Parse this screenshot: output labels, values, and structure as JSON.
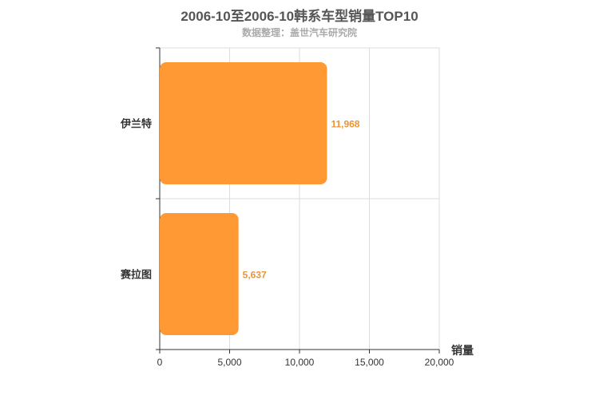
{
  "chart_data": {
    "type": "bar",
    "orientation": "horizontal",
    "title": "2006-10至2006-10韩系车型销量TOP10",
    "subtitle": "数据整理：盖世汽车研究院",
    "categories": [
      "伊兰特",
      "赛拉图"
    ],
    "values": [
      11968,
      5637
    ],
    "value_labels": [
      "11,968",
      "5,637"
    ],
    "xlabel": "销量",
    "ylabel": "",
    "xlim": [
      0,
      20000
    ],
    "xticks": [
      0,
      5000,
      10000,
      15000,
      20000
    ],
    "xtick_labels": [
      "0",
      "5,000",
      "10,000",
      "15,000",
      "20,000"
    ],
    "grid": true,
    "bar_color": "#ff9933",
    "label_color": "#e8963a"
  }
}
